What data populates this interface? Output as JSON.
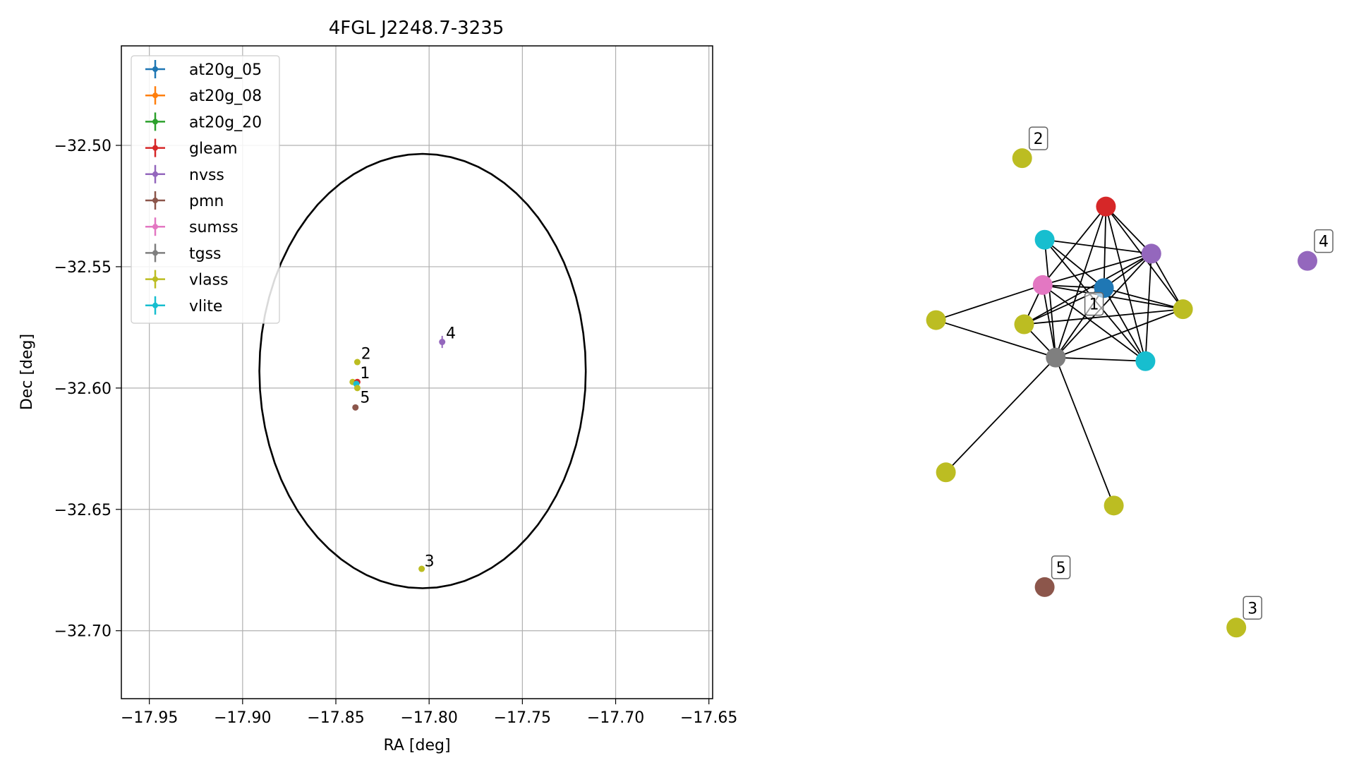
{
  "chart_data": [
    {
      "type": "scatter",
      "title": "4FGL J2248.7-3235",
      "xlabel": "RA [deg]",
      "ylabel": "Dec [deg]",
      "xlim": [
        -17.965,
        -17.648
      ],
      "ylim": [
        -32.728,
        -32.459
      ],
      "xticks": [
        -17.95,
        -17.9,
        -17.85,
        -17.8,
        -17.75,
        -17.7,
        -17.65
      ],
      "xtick_labels": [
        "−17.95",
        "−17.90",
        "−17.85",
        "−17.80",
        "−17.75",
        "−17.70",
        "−17.65"
      ],
      "yticks": [
        -32.5,
        -32.55,
        -32.6,
        -32.65,
        -32.7
      ],
      "ytick_labels": [
        "−32.50",
        "−32.55",
        "−32.60",
        "−32.65",
        "−32.70"
      ],
      "grid": true,
      "legend_placement": "top-left",
      "legend": [
        {
          "name": "at20g_05",
          "color": "#1f77b4"
        },
        {
          "name": "at20g_08",
          "color": "#ff7f0e"
        },
        {
          "name": "at20g_20",
          "color": "#2ca02c"
        },
        {
          "name": "gleam",
          "color": "#d62728"
        },
        {
          "name": "nvss",
          "color": "#9467bd"
        },
        {
          "name": "pmn",
          "color": "#8c564b"
        },
        {
          "name": "sumss",
          "color": "#e377c2"
        },
        {
          "name": "tgss",
          "color": "#7f7f7f"
        },
        {
          "name": "vlass",
          "color": "#bcbd22"
        },
        {
          "name": "vlite",
          "color": "#17becf"
        }
      ],
      "ellipse": {
        "center_x": -17.8035,
        "center_y": -32.593,
        "semi_x": 0.0875,
        "semi_y": 0.0895
      },
      "points": [
        {
          "x": -17.8385,
          "y": -32.5893,
          "color": "#bcbd22",
          "err_x": 0,
          "err_y": 0
        },
        {
          "x": -17.841,
          "y": -32.5975,
          "color": "#bcbd22",
          "err_x": 0,
          "err_y": 0
        },
        {
          "x": -17.8385,
          "y": -32.5975,
          "color": "#d62728",
          "err_x": 0,
          "err_y": 0
        },
        {
          "x": -17.839,
          "y": -32.5983,
          "color": "#17becf",
          "err_x": 0,
          "err_y": 0
        },
        {
          "x": -17.8385,
          "y": -32.6,
          "color": "#bcbd22",
          "err_x": 0,
          "err_y": 0
        },
        {
          "x": -17.793,
          "y": -32.581,
          "color": "#9467bd",
          "err_x": 0.0015,
          "err_y": 0.0025
        },
        {
          "x": -17.8395,
          "y": -32.608,
          "color": "#8c564b",
          "err_x": 0,
          "err_y": 0
        },
        {
          "x": -17.804,
          "y": -32.6745,
          "color": "#bcbd22",
          "err_x": 0,
          "err_y": 0
        }
      ],
      "point_labels": [
        {
          "text": "1",
          "x": -17.837,
          "y": -32.596
        },
        {
          "text": "2",
          "x": -17.8365,
          "y": -32.588
        },
        {
          "text": "3",
          "x": -17.8025,
          "y": -32.6735
        },
        {
          "text": "4",
          "x": -17.791,
          "y": -32.5795
        },
        {
          "text": "5",
          "x": -17.837,
          "y": -32.606
        }
      ]
    },
    {
      "type": "network",
      "nodes": [
        {
          "id": "n_red",
          "x": 0.49,
          "y": 0.19,
          "color": "#d62728",
          "label": ""
        },
        {
          "id": "n_cyan1",
          "x": 0.335,
          "y": 0.245,
          "color": "#17becf",
          "label": ""
        },
        {
          "id": "n_purple",
          "x": 0.605,
          "y": 0.268,
          "color": "#9467bd",
          "label": ""
        },
        {
          "id": "n_pink",
          "x": 0.33,
          "y": 0.32,
          "color": "#e377c2",
          "label": ""
        },
        {
          "id": "n_blue",
          "x": 0.485,
          "y": 0.325,
          "color": "#1f77b4",
          "label": ""
        },
        {
          "id": "n_label1",
          "x": 0.46,
          "y": 0.35,
          "color": "none",
          "label": "1"
        },
        {
          "id": "n_olive_r",
          "x": 0.685,
          "y": 0.36,
          "color": "#bcbd22",
          "label": ""
        },
        {
          "id": "n_olive_l",
          "x": 0.06,
          "y": 0.378,
          "color": "#bcbd22",
          "label": ""
        },
        {
          "id": "n_olive_m",
          "x": 0.283,
          "y": 0.385,
          "color": "#bcbd22",
          "label": ""
        },
        {
          "id": "n_gray",
          "x": 0.363,
          "y": 0.44,
          "color": "#7f7f7f",
          "label": ""
        },
        {
          "id": "n_cyan2",
          "x": 0.59,
          "y": 0.446,
          "color": "#17becf",
          "label": ""
        },
        {
          "id": "n_olive_bl",
          "x": 0.085,
          "y": 0.63,
          "color": "#bcbd22",
          "label": ""
        },
        {
          "id": "n_olive_bm",
          "x": 0.51,
          "y": 0.685,
          "color": "#bcbd22",
          "label": ""
        },
        {
          "id": "n_olive2",
          "x": 0.278,
          "y": 0.11,
          "color": "#bcbd22",
          "label": "2"
        },
        {
          "id": "n_purple4",
          "x": 1.0,
          "y": 0.28,
          "color": "#9467bd",
          "label": "4"
        },
        {
          "id": "n_brown5",
          "x": 0.335,
          "y": 0.82,
          "color": "#8c564b",
          "label": "5"
        },
        {
          "id": "n_olive3",
          "x": 0.82,
          "y": 0.887,
          "color": "#bcbd22",
          "label": "3"
        }
      ],
      "edges": [
        [
          "n_red",
          "n_gray"
        ],
        [
          "n_red",
          "n_purple"
        ],
        [
          "n_red",
          "n_olive_r"
        ],
        [
          "n_red",
          "n_pink"
        ],
        [
          "n_red",
          "n_blue"
        ],
        [
          "n_red",
          "n_cyan2"
        ],
        [
          "n_cyan1",
          "n_gray"
        ],
        [
          "n_cyan1",
          "n_purple"
        ],
        [
          "n_cyan1",
          "n_blue"
        ],
        [
          "n_cyan1",
          "n_cyan2"
        ],
        [
          "n_purple",
          "n_pink"
        ],
        [
          "n_purple",
          "n_gray"
        ],
        [
          "n_purple",
          "n_olive_m"
        ],
        [
          "n_purple",
          "n_olive_r"
        ],
        [
          "n_purple",
          "n_cyan2"
        ],
        [
          "n_purple",
          "n_blue"
        ],
        [
          "n_pink",
          "n_olive_r"
        ],
        [
          "n_pink",
          "n_cyan2"
        ],
        [
          "n_pink",
          "n_olive_l"
        ],
        [
          "n_pink",
          "n_olive_m"
        ],
        [
          "n_pink",
          "n_gray"
        ],
        [
          "n_pink",
          "n_blue"
        ],
        [
          "n_blue",
          "n_olive_m"
        ],
        [
          "n_blue",
          "n_gray"
        ],
        [
          "n_blue",
          "n_olive_r"
        ],
        [
          "n_blue",
          "n_cyan2"
        ],
        [
          "n_gray",
          "n_olive_l"
        ],
        [
          "n_gray",
          "n_olive_m"
        ],
        [
          "n_gray",
          "n_olive_r"
        ],
        [
          "n_gray",
          "n_cyan2"
        ],
        [
          "n_gray",
          "n_olive_bl"
        ],
        [
          "n_gray",
          "n_olive_bm"
        ],
        [
          "n_olive_r",
          "n_olive_m"
        ]
      ]
    }
  ]
}
